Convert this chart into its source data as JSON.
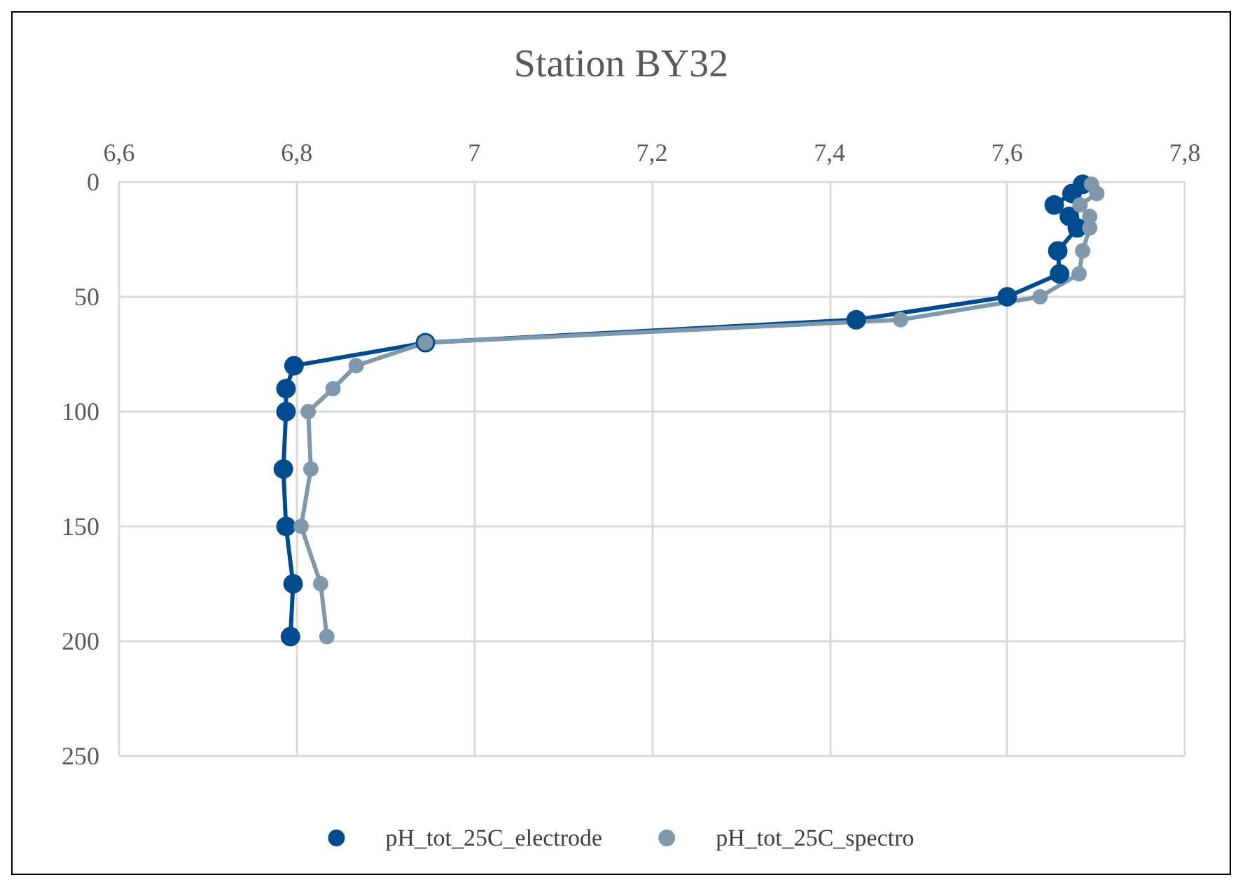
{
  "chart_data": {
    "type": "line",
    "title": "Station BY32",
    "xlim": [
      6.6,
      7.8
    ],
    "xticks": [
      {
        "value": 6.6,
        "label": "6,6"
      },
      {
        "value": 6.8,
        "label": "6,8"
      },
      7,
      {
        "value": 7.2,
        "label": "7,2"
      },
      {
        "value": 7.4,
        "label": "7,4"
      },
      {
        "value": 7.6,
        "label": "7,6"
      },
      {
        "value": 7.8,
        "label": "7,8"
      }
    ],
    "ylim": [
      250,
      0
    ],
    "yticks": [
      0,
      50,
      100,
      150,
      200,
      250
    ],
    "grid": true,
    "legend": "bottom",
    "marker": "circle",
    "line_style": "solid",
    "series": [
      {
        "name": "pH_tot_25C_electrode",
        "color": "#004b8d",
        "x": [
          7.685,
          7.673,
          7.653,
          7.67,
          7.679,
          7.657,
          7.659,
          7.6,
          7.43,
          6.945,
          6.797,
          6.788,
          6.788,
          6.785,
          6.788,
          6.796,
          6.793
        ],
        "values": [
          1,
          5,
          10,
          15,
          20,
          30,
          40,
          50,
          60,
          70,
          80,
          90,
          100,
          125,
          150,
          175,
          198
        ]
      },
      {
        "name": "pH_tot_25C_spectro",
        "color": "#7f98ab",
        "x": [
          7.695,
          7.701,
          7.682,
          7.693,
          7.693,
          7.685,
          7.681,
          7.637,
          7.48,
          6.945,
          6.867,
          6.841,
          6.813,
          6.816,
          6.805,
          6.827,
          6.834
        ],
        "values": [
          1,
          5,
          10,
          15,
          20,
          30,
          40,
          50,
          60,
          70,
          80,
          90,
          100,
          125,
          150,
          175,
          198
        ]
      }
    ]
  }
}
